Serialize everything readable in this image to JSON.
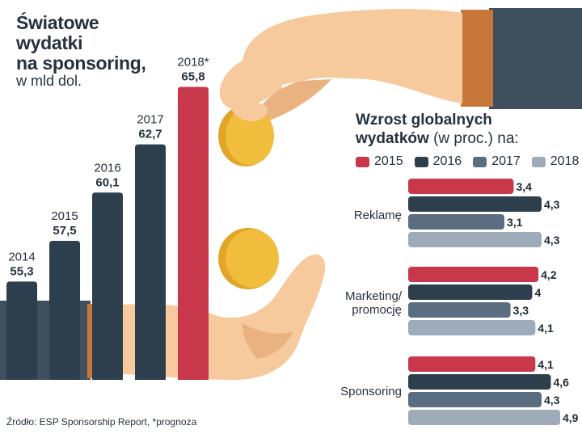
{
  "title": "Światowe wydatki na sponsoring,",
  "title_lines": [
    "Światowe",
    "wydatki",
    "na sponsoring,"
  ],
  "subtitle": "w mld dol.",
  "right_title": "Wzrost globalnych",
  "right_subtitle_bold": "wydatków",
  "right_subtitle_rest": " (w proc.) na:",
  "source": "Źródło: ESP Sponsorship Report, *prognoza",
  "colors": {
    "y2015": "#c8384a",
    "y2016": "#2d3e4d",
    "y2017": "#5b6d80",
    "y2018": "#9eabb8",
    "skin": "#f6ca9d",
    "skin_shadow": "#e9b280",
    "sleeve": "#3f4f5e",
    "cuff": "#c8773a",
    "coin": "#f0bd3c",
    "coin_rim": "#e1a52a"
  },
  "chart_data": [
    {
      "type": "bar",
      "title": "Światowe wydatki na sponsoring, w mld dol.",
      "categories": [
        "2014",
        "2015",
        "2016",
        "2017",
        "2018*"
      ],
      "values": [
        55.3,
        57.5,
        60.1,
        62.7,
        65.8
      ],
      "value_labels": [
        "55,3",
        "57,5",
        "60,1",
        "62,7",
        "65,8"
      ],
      "highlight_index": 4,
      "ylim": [
        50,
        67
      ],
      "xlabel": "",
      "ylabel": ""
    },
    {
      "type": "bar",
      "orientation": "horizontal",
      "title": "Wzrost globalnych wydatków (w proc.) na:",
      "categories": [
        "Reklamę",
        "Marketing/ promocję",
        "Sponsoring"
      ],
      "category_lines": [
        [
          "Reklamę"
        ],
        [
          "Marketing/",
          "promocję"
        ],
        [
          "Sponsoring"
        ]
      ],
      "series": [
        {
          "name": "2015",
          "values": [
            3.4,
            4.2,
            4.1
          ],
          "labels": [
            "3,4",
            "4,2",
            "4,1"
          ]
        },
        {
          "name": "2016",
          "values": [
            4.3,
            4.0,
            4.6
          ],
          "labels": [
            "4,3",
            "4",
            "4,6"
          ]
        },
        {
          "name": "2017",
          "values": [
            3.1,
            3.3,
            4.3
          ],
          "labels": [
            "3,1",
            "3,3",
            "4,3"
          ]
        },
        {
          "name": "2018",
          "values": [
            4.3,
            4.1,
            4.9
          ],
          "labels": [
            "4,3",
            "4,1",
            "4,9"
          ]
        }
      ],
      "xlim": [
        0,
        4.9
      ],
      "legend": "top"
    }
  ]
}
